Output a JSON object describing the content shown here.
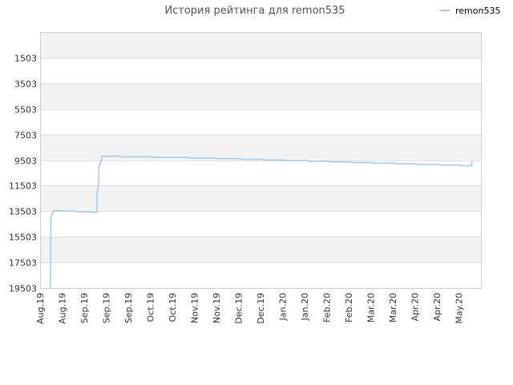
{
  "chart_data": {
    "type": "line",
    "title": "История рейтинга для remon535",
    "legend": {
      "position": "top-right",
      "entries": [
        "remon535"
      ]
    },
    "colors": {
      "series": "#99ccee",
      "band": "#f2f2f2",
      "grid": "#dddddd",
      "axis": "#cccccc"
    },
    "grid": true,
    "y_inverted": true,
    "ylim": [
      19503,
      -497
    ],
    "y_ticks": [
      1503,
      3503,
      5503,
      7503,
      9503,
      11503,
      13503,
      15503,
      17503,
      19503
    ],
    "x_ticks": [
      "Aug.19",
      "Aug.19",
      "Sep.19",
      "Sep.19",
      "Sep.19",
      "Oct.19",
      "Oct.19",
      "Nov.19",
      "Nov.19",
      "Dec.19",
      "Dec.19",
      "Jan.20",
      "Jan.20",
      "Feb.20",
      "Feb.20",
      "Mar.20",
      "Mar.20",
      "Apr.20",
      "Apr.20",
      "May.20"
    ],
    "series": [
      {
        "name": "remon535",
        "points": [
          {
            "x": 0.4,
            "y": 19503
          },
          {
            "x": 0.42,
            "y": 14000
          },
          {
            "x": 0.5,
            "y": 13600
          },
          {
            "x": 0.55,
            "y": 13450
          },
          {
            "x": 0.8,
            "y": 13450
          },
          {
            "x": 1.0,
            "y": 13500
          },
          {
            "x": 1.5,
            "y": 13500
          },
          {
            "x": 1.6,
            "y": 13550
          },
          {
            "x": 2.2,
            "y": 13550
          },
          {
            "x": 2.25,
            "y": 13600
          },
          {
            "x": 2.5,
            "y": 13600
          },
          {
            "x": 2.52,
            "y": 12000
          },
          {
            "x": 2.58,
            "y": 11400
          },
          {
            "x": 2.6,
            "y": 10000
          },
          {
            "x": 2.7,
            "y": 9600
          },
          {
            "x": 2.75,
            "y": 9200
          },
          {
            "x": 2.8,
            "y": 9200
          },
          {
            "x": 3.5,
            "y": 9200
          },
          {
            "x": 3.6,
            "y": 9250
          },
          {
            "x": 5.0,
            "y": 9250
          },
          {
            "x": 5.2,
            "y": 9300
          },
          {
            "x": 6.6,
            "y": 9300
          },
          {
            "x": 6.8,
            "y": 9350
          },
          {
            "x": 7.9,
            "y": 9350
          },
          {
            "x": 8.0,
            "y": 9400
          },
          {
            "x": 9.0,
            "y": 9400
          },
          {
            "x": 9.1,
            "y": 9450
          },
          {
            "x": 10.0,
            "y": 9450
          },
          {
            "x": 10.1,
            "y": 9500
          },
          {
            "x": 11.0,
            "y": 9500
          },
          {
            "x": 11.1,
            "y": 9550
          },
          {
            "x": 12.0,
            "y": 9550
          },
          {
            "x": 12.1,
            "y": 9600
          },
          {
            "x": 13.0,
            "y": 9600
          },
          {
            "x": 13.1,
            "y": 9650
          },
          {
            "x": 14.0,
            "y": 9650
          },
          {
            "x": 14.1,
            "y": 9700
          },
          {
            "x": 15.0,
            "y": 9700
          },
          {
            "x": 15.1,
            "y": 9750
          },
          {
            "x": 16.0,
            "y": 9750
          },
          {
            "x": 16.1,
            "y": 9800
          },
          {
            "x": 17.0,
            "y": 9800
          },
          {
            "x": 17.1,
            "y": 9850
          },
          {
            "x": 18.0,
            "y": 9850
          },
          {
            "x": 18.1,
            "y": 9900
          },
          {
            "x": 19.0,
            "y": 9900
          },
          {
            "x": 19.05,
            "y": 9950
          },
          {
            "x": 19.5,
            "y": 9950
          },
          {
            "x": 19.52,
            "y": 9600
          }
        ]
      }
    ]
  }
}
